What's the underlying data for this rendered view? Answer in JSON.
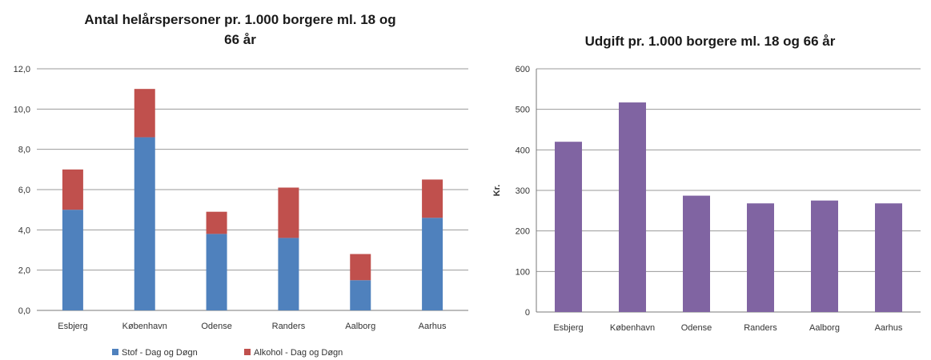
{
  "chart_data": [
    {
      "type": "bar",
      "stacked": true,
      "title_line1": "Antal helårspersoner pr. 1.000 borgere ml. 18 og",
      "title_line2": "66 år",
      "xlabel": "",
      "ylabel": "",
      "categories": [
        "Esbjerg",
        "København",
        "Odense",
        "Randers",
        "Aalborg",
        "Aarhus"
      ],
      "ylim": [
        0,
        12
      ],
      "yticks": [
        "0,0",
        "2,0",
        "4,0",
        "6,0",
        "8,0",
        "10,0",
        "12,0"
      ],
      "grid": true,
      "legend_position": "bottom",
      "series": [
        {
          "name": "Stof - Dag og Døgn",
          "color": "#4f81bd",
          "values": [
            5.0,
            8.6,
            3.8,
            3.6,
            1.5,
            4.6
          ]
        },
        {
          "name": "Alkohol - Dag og Døgn",
          "color": "#c0504d",
          "values": [
            2.0,
            2.4,
            1.1,
            2.5,
            1.3,
            1.9
          ]
        }
      ]
    },
    {
      "type": "bar",
      "title": "Udgift pr. 1.000 borgere ml. 18 og 66 år",
      "xlabel": "",
      "ylabel": "Kr.",
      "categories": [
        "Esbjerg",
        "København",
        "Odense",
        "Randers",
        "Aalborg",
        "Aarhus"
      ],
      "ylim": [
        0,
        600
      ],
      "yticks": [
        "0",
        "100",
        "200",
        "300",
        "400",
        "500",
        "600"
      ],
      "grid": true,
      "series": [
        {
          "color": "#8064a2",
          "values": [
            420,
            517,
            287,
            268,
            275,
            268
          ]
        }
      ]
    }
  ]
}
